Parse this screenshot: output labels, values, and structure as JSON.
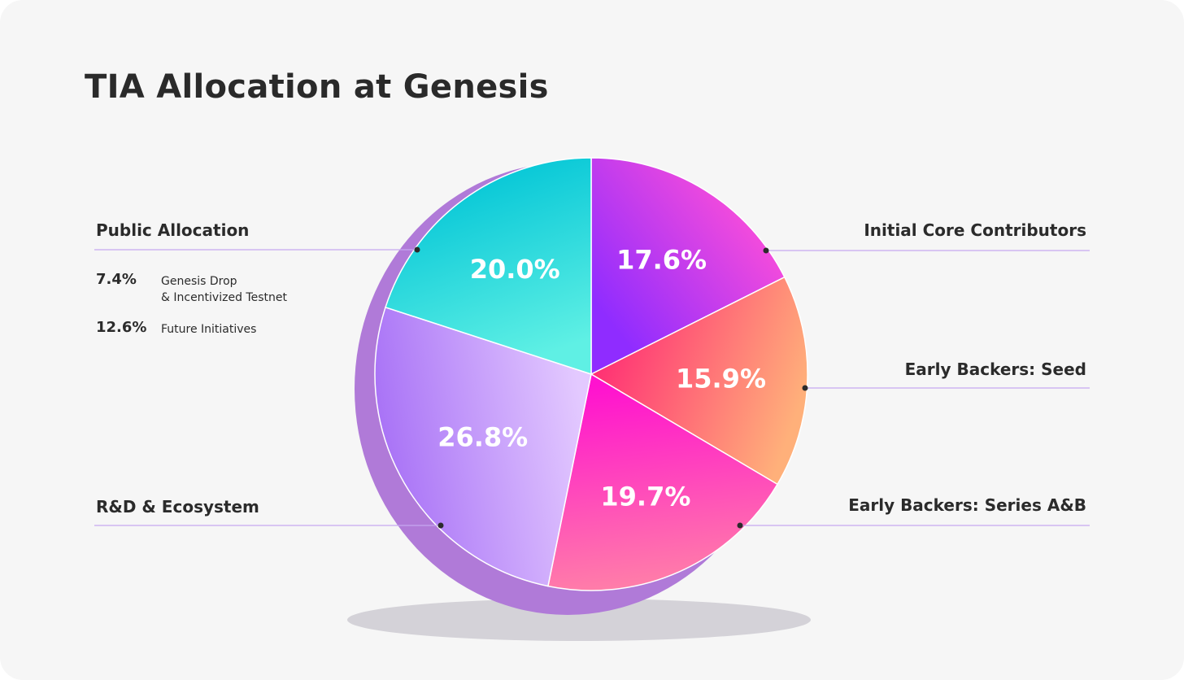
{
  "title": "TIA Allocation at Genesis",
  "chart_data": {
    "type": "pie",
    "title": "TIA Allocation at Genesis",
    "slices": [
      {
        "name": "Initial Core Contributors",
        "value": 17.6,
        "label": "17.6%",
        "color_start": "#8f2cff",
        "color_end": "#ff4fd8"
      },
      {
        "name": "Early Backers: Seed",
        "value": 15.9,
        "label": "15.9%",
        "color_start": "#ff2f74",
        "color_end": "#ffb07a"
      },
      {
        "name": "Early Backers: Series A&B",
        "value": 19.7,
        "label": "19.7%",
        "color_start": "#ff12cf",
        "color_end": "#ff7fa8"
      },
      {
        "name": "R&D & Ecosystem",
        "value": 26.8,
        "label": "26.8%",
        "color_start": "#e3c9ff",
        "color_end": "#a770f6"
      },
      {
        "name": "Public Allocation",
        "value": 20.0,
        "label": "20.0%",
        "color_start": "#5ff0e4",
        "color_end": "#00c4d6"
      }
    ],
    "public_allocation_breakdown": [
      {
        "value": 7.4,
        "label": "7.4%",
        "description": "Genesis Drop & Incentivized Testnet"
      },
      {
        "value": 12.6,
        "label": "12.6%",
        "description": "Future Initiatives"
      }
    ]
  },
  "labels": {
    "public_allocation": "Public Allocation",
    "initial_core": "Initial Core Contributors",
    "seed": "Early Backers: Seed",
    "series_ab": "Early Backers: Series A&B",
    "rnd": "R&D & Ecosystem"
  },
  "breakdown": {
    "item1_pct": "7.4%",
    "item1_line1": "Genesis Drop",
    "item1_line2": "& Incentivized Testnet",
    "item2_pct": "12.6%",
    "item2_desc": "Future Initiatives"
  }
}
